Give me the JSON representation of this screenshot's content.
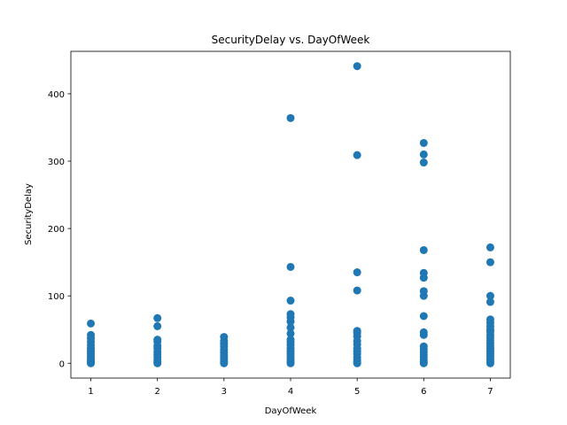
{
  "chart_data": {
    "type": "scatter",
    "title": "SecurityDelay vs. DayOfWeek",
    "xlabel": "DayOfWeek",
    "ylabel": "SecurityDelay",
    "xlim": [
      0.7,
      7.3
    ],
    "ylim": [
      -22,
      463
    ],
    "xticks": [
      1,
      2,
      3,
      4,
      5,
      6,
      7
    ],
    "yticks": [
      0,
      100,
      200,
      300,
      400
    ],
    "grid": false,
    "legend": "none",
    "marker_color": "#1f77b4",
    "points": [
      {
        "x": 1,
        "y": 0
      },
      {
        "x": 1,
        "y": 2
      },
      {
        "x": 1,
        "y": 4
      },
      {
        "x": 1,
        "y": 7
      },
      {
        "x": 1,
        "y": 10
      },
      {
        "x": 1,
        "y": 14
      },
      {
        "x": 1,
        "y": 18
      },
      {
        "x": 1,
        "y": 22
      },
      {
        "x": 1,
        "y": 27
      },
      {
        "x": 1,
        "y": 32
      },
      {
        "x": 1,
        "y": 37
      },
      {
        "x": 1,
        "y": 42
      },
      {
        "x": 1,
        "y": 59
      },
      {
        "x": 2,
        "y": 0
      },
      {
        "x": 2,
        "y": 2
      },
      {
        "x": 2,
        "y": 5
      },
      {
        "x": 2,
        "y": 9
      },
      {
        "x": 2,
        "y": 13
      },
      {
        "x": 2,
        "y": 17
      },
      {
        "x": 2,
        "y": 22
      },
      {
        "x": 2,
        "y": 26
      },
      {
        "x": 2,
        "y": 32
      },
      {
        "x": 2,
        "y": 35
      },
      {
        "x": 2,
        "y": 55
      },
      {
        "x": 2,
        "y": 67
      },
      {
        "x": 3,
        "y": 0
      },
      {
        "x": 3,
        "y": 2
      },
      {
        "x": 3,
        "y": 5
      },
      {
        "x": 3,
        "y": 8
      },
      {
        "x": 3,
        "y": 12
      },
      {
        "x": 3,
        "y": 16
      },
      {
        "x": 3,
        "y": 20
      },
      {
        "x": 3,
        "y": 25
      },
      {
        "x": 3,
        "y": 29
      },
      {
        "x": 3,
        "y": 33
      },
      {
        "x": 3,
        "y": 39
      },
      {
        "x": 4,
        "y": 0
      },
      {
        "x": 4,
        "y": 3
      },
      {
        "x": 4,
        "y": 6
      },
      {
        "x": 4,
        "y": 10
      },
      {
        "x": 4,
        "y": 14
      },
      {
        "x": 4,
        "y": 18
      },
      {
        "x": 4,
        "y": 22
      },
      {
        "x": 4,
        "y": 27
      },
      {
        "x": 4,
        "y": 31
      },
      {
        "x": 4,
        "y": 35
      },
      {
        "x": 4,
        "y": 44
      },
      {
        "x": 4,
        "y": 53
      },
      {
        "x": 4,
        "y": 62
      },
      {
        "x": 4,
        "y": 68
      },
      {
        "x": 4,
        "y": 73
      },
      {
        "x": 4,
        "y": 93
      },
      {
        "x": 4,
        "y": 143
      },
      {
        "x": 4,
        "y": 364
      },
      {
        "x": 5,
        "y": 0
      },
      {
        "x": 5,
        "y": 2
      },
      {
        "x": 5,
        "y": 5
      },
      {
        "x": 5,
        "y": 9
      },
      {
        "x": 5,
        "y": 14
      },
      {
        "x": 5,
        "y": 18
      },
      {
        "x": 5,
        "y": 22
      },
      {
        "x": 5,
        "y": 28
      },
      {
        "x": 5,
        "y": 33
      },
      {
        "x": 5,
        "y": 40
      },
      {
        "x": 5,
        "y": 45
      },
      {
        "x": 5,
        "y": 48
      },
      {
        "x": 5,
        "y": 108
      },
      {
        "x": 5,
        "y": 135
      },
      {
        "x": 5,
        "y": 309
      },
      {
        "x": 5,
        "y": 441
      },
      {
        "x": 6,
        "y": 0
      },
      {
        "x": 6,
        "y": 2
      },
      {
        "x": 6,
        "y": 5
      },
      {
        "x": 6,
        "y": 9
      },
      {
        "x": 6,
        "y": 13
      },
      {
        "x": 6,
        "y": 17
      },
      {
        "x": 6,
        "y": 21
      },
      {
        "x": 6,
        "y": 25
      },
      {
        "x": 6,
        "y": 42
      },
      {
        "x": 6,
        "y": 46
      },
      {
        "x": 6,
        "y": 70
      },
      {
        "x": 6,
        "y": 100
      },
      {
        "x": 6,
        "y": 107
      },
      {
        "x": 6,
        "y": 127
      },
      {
        "x": 6,
        "y": 134
      },
      {
        "x": 6,
        "y": 168
      },
      {
        "x": 6,
        "y": 298
      },
      {
        "x": 6,
        "y": 310
      },
      {
        "x": 6,
        "y": 327
      },
      {
        "x": 7,
        "y": 0
      },
      {
        "x": 7,
        "y": 3
      },
      {
        "x": 7,
        "y": 6
      },
      {
        "x": 7,
        "y": 10
      },
      {
        "x": 7,
        "y": 14
      },
      {
        "x": 7,
        "y": 18
      },
      {
        "x": 7,
        "y": 22
      },
      {
        "x": 7,
        "y": 26
      },
      {
        "x": 7,
        "y": 30
      },
      {
        "x": 7,
        "y": 34
      },
      {
        "x": 7,
        "y": 38
      },
      {
        "x": 7,
        "y": 42
      },
      {
        "x": 7,
        "y": 47
      },
      {
        "x": 7,
        "y": 50
      },
      {
        "x": 7,
        "y": 55
      },
      {
        "x": 7,
        "y": 60
      },
      {
        "x": 7,
        "y": 65
      },
      {
        "x": 7,
        "y": 91
      },
      {
        "x": 7,
        "y": 100
      },
      {
        "x": 7,
        "y": 150
      },
      {
        "x": 7,
        "y": 172
      }
    ]
  }
}
